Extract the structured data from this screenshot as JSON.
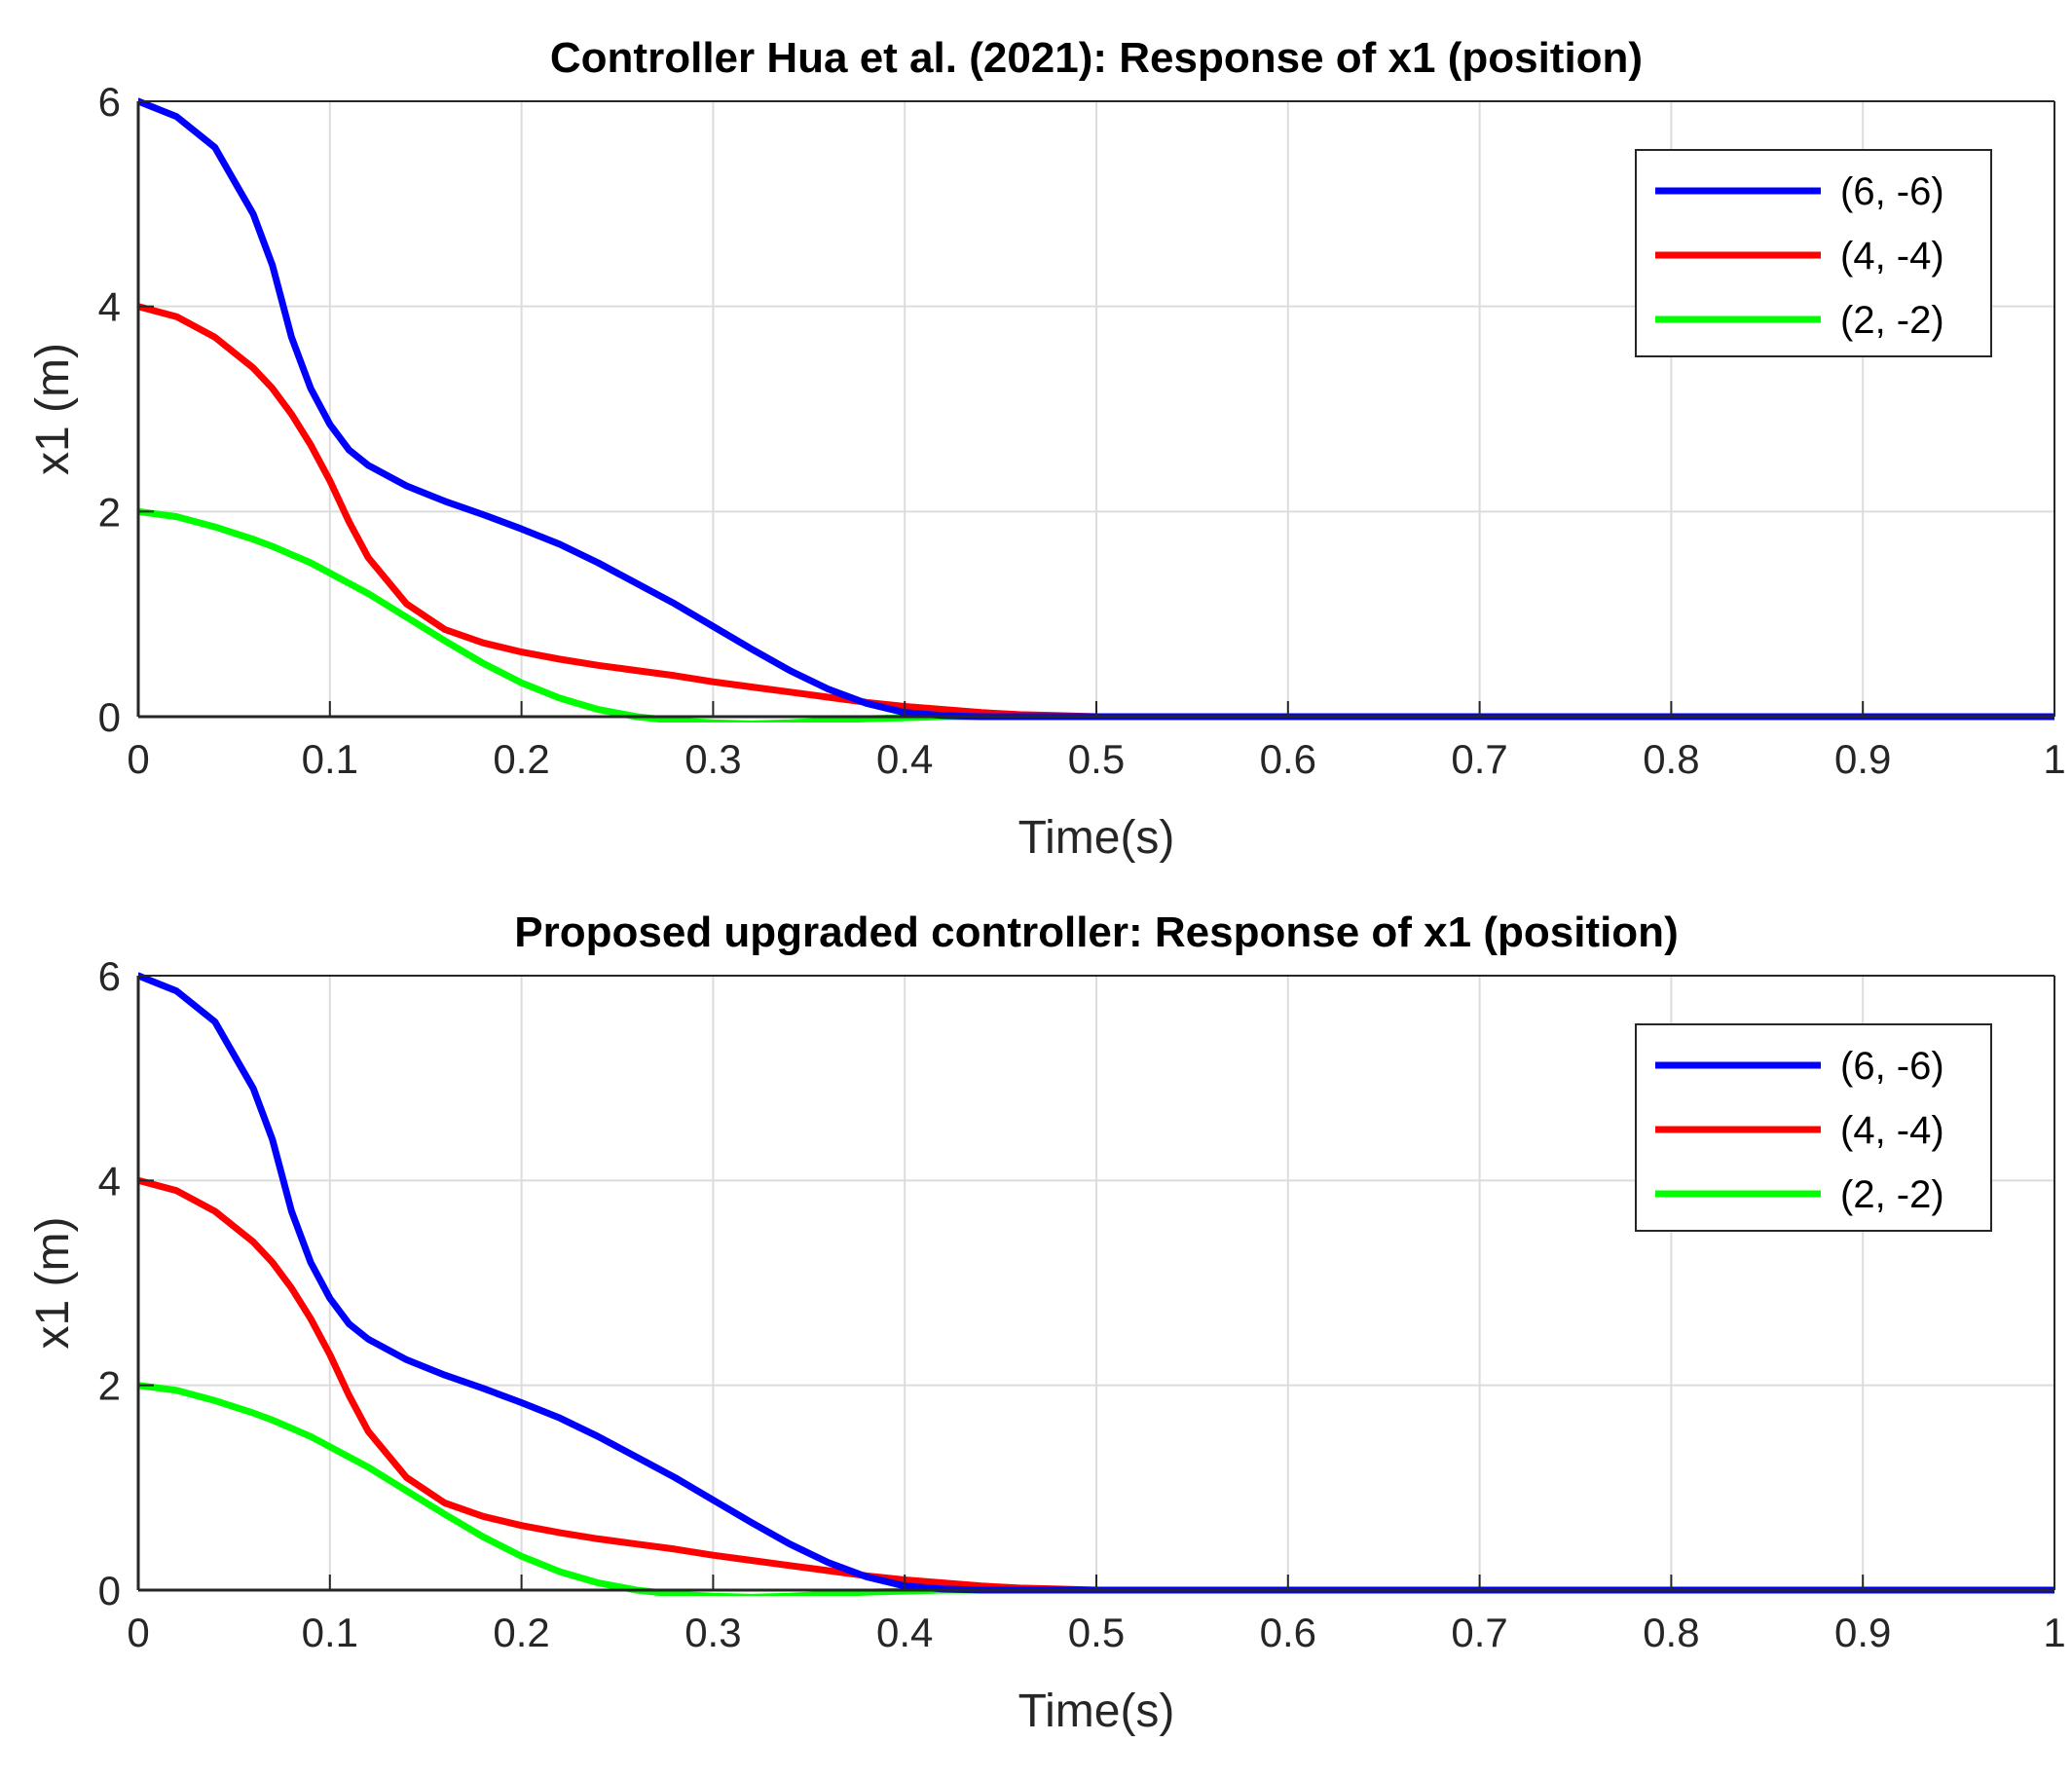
{
  "chart_data": [
    {
      "type": "line",
      "title": "Controller Hua et al. (2021): Response of x1 (position)",
      "xlabel": "Time(s)",
      "ylabel": "x1 (m)",
      "xlim": [
        0,
        1
      ],
      "ylim": [
        0,
        6
      ],
      "x_ticks": [
        "0",
        "0.1",
        "0.2",
        "0.3",
        "0.4",
        "0.5",
        "0.6",
        "0.7",
        "0.8",
        "0.9",
        "1"
      ],
      "y_ticks": [
        "0",
        "2",
        "4",
        "6"
      ],
      "grid": true,
      "legend_position": "top-right",
      "x": [
        0,
        0.02,
        0.04,
        0.06,
        0.07,
        0.08,
        0.09,
        0.1,
        0.11,
        0.12,
        0.14,
        0.16,
        0.18,
        0.2,
        0.22,
        0.24,
        0.26,
        0.28,
        0.3,
        0.32,
        0.34,
        0.36,
        0.38,
        0.4,
        0.42,
        0.44,
        0.46,
        0.48,
        0.5,
        0.6,
        0.7,
        0.8,
        0.9,
        1.0
      ],
      "series": [
        {
          "name": "(6, -6)",
          "color": "#0000ff",
          "values": [
            6.0,
            5.85,
            5.55,
            4.9,
            4.4,
            3.7,
            3.2,
            2.85,
            2.6,
            2.45,
            2.25,
            2.1,
            1.97,
            1.83,
            1.68,
            1.5,
            1.3,
            1.1,
            0.88,
            0.66,
            0.45,
            0.27,
            0.13,
            0.04,
            0.01,
            0.0,
            0.0,
            0.0,
            0.0,
            0.0,
            0.0,
            0.0,
            0.0,
            0.0
          ]
        },
        {
          "name": "(4, -4)",
          "color": "#ff0000",
          "values": [
            4.0,
            3.9,
            3.7,
            3.4,
            3.2,
            2.95,
            2.65,
            2.3,
            1.9,
            1.55,
            1.1,
            0.85,
            0.72,
            0.63,
            0.56,
            0.5,
            0.45,
            0.4,
            0.34,
            0.29,
            0.24,
            0.19,
            0.14,
            0.1,
            0.07,
            0.04,
            0.02,
            0.01,
            0.0,
            0.0,
            0.0,
            0.0,
            0.0,
            0.0
          ]
        },
        {
          "name": "(2, -2)",
          "color": "#00ff00",
          "values": [
            2.0,
            1.95,
            1.85,
            1.73,
            1.66,
            1.58,
            1.5,
            1.4,
            1.3,
            1.2,
            0.97,
            0.74,
            0.52,
            0.33,
            0.18,
            0.07,
            0.0,
            -0.04,
            -0.06,
            -0.07,
            -0.06,
            -0.04,
            -0.02,
            -0.01,
            0.0,
            0.0,
            0.0,
            0.0,
            0.0,
            0.0,
            0.0,
            0.0,
            0.0,
            0.0
          ]
        }
      ]
    },
    {
      "type": "line",
      "title": "Proposed upgraded controller: Response of x1 (position)",
      "xlabel": "Time(s)",
      "ylabel": "x1 (m)",
      "xlim": [
        0,
        1
      ],
      "ylim": [
        0,
        6
      ],
      "x_ticks": [
        "0",
        "0.1",
        "0.2",
        "0.3",
        "0.4",
        "0.5",
        "0.6",
        "0.7",
        "0.8",
        "0.9",
        "1"
      ],
      "y_ticks": [
        "0",
        "2",
        "4",
        "6"
      ],
      "grid": true,
      "legend_position": "top-right",
      "x": [
        0,
        0.02,
        0.04,
        0.06,
        0.07,
        0.08,
        0.09,
        0.1,
        0.11,
        0.12,
        0.14,
        0.16,
        0.18,
        0.2,
        0.22,
        0.24,
        0.26,
        0.28,
        0.3,
        0.32,
        0.34,
        0.36,
        0.38,
        0.4,
        0.42,
        0.44,
        0.46,
        0.48,
        0.5,
        0.6,
        0.7,
        0.8,
        0.9,
        1.0
      ],
      "series": [
        {
          "name": "(6, -6)",
          "color": "#0000ff",
          "values": [
            6.0,
            5.85,
            5.55,
            4.9,
            4.4,
            3.7,
            3.2,
            2.85,
            2.6,
            2.45,
            2.25,
            2.1,
            1.97,
            1.83,
            1.68,
            1.5,
            1.3,
            1.1,
            0.88,
            0.66,
            0.45,
            0.27,
            0.13,
            0.04,
            0.01,
            0.0,
            0.0,
            0.0,
            0.0,
            0.0,
            0.0,
            0.0,
            0.0,
            0.0
          ]
        },
        {
          "name": "(4, -4)",
          "color": "#ff0000",
          "values": [
            4.0,
            3.9,
            3.7,
            3.4,
            3.2,
            2.95,
            2.65,
            2.3,
            1.9,
            1.55,
            1.1,
            0.85,
            0.72,
            0.63,
            0.56,
            0.5,
            0.45,
            0.4,
            0.34,
            0.29,
            0.24,
            0.19,
            0.14,
            0.1,
            0.07,
            0.04,
            0.02,
            0.01,
            0.0,
            0.0,
            0.0,
            0.0,
            0.0,
            0.0
          ]
        },
        {
          "name": "(2, -2)",
          "color": "#00ff00",
          "values": [
            2.0,
            1.95,
            1.85,
            1.73,
            1.66,
            1.58,
            1.5,
            1.4,
            1.3,
            1.2,
            0.97,
            0.74,
            0.52,
            0.33,
            0.18,
            0.07,
            0.0,
            -0.04,
            -0.06,
            -0.07,
            -0.06,
            -0.04,
            -0.02,
            -0.01,
            0.0,
            0.0,
            0.0,
            0.0,
            0.0,
            0.0,
            0.0,
            0.0,
            0.0,
            0.0
          ]
        }
      ]
    }
  ]
}
